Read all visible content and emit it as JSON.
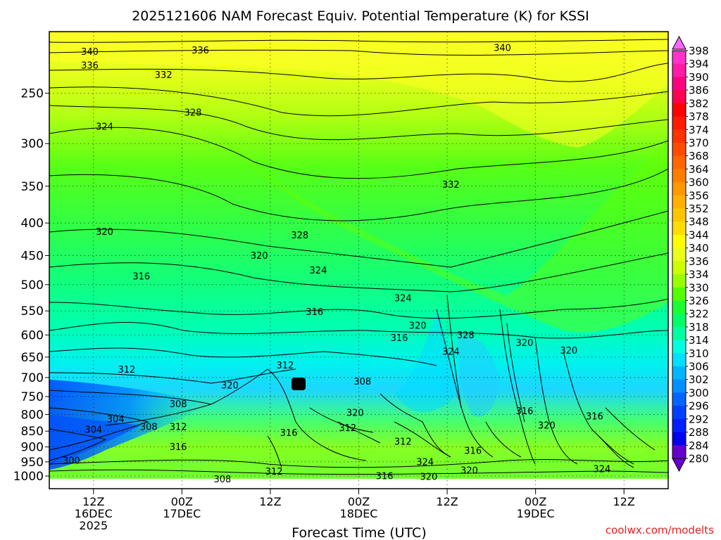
{
  "chart_data": {
    "type": "heatmap",
    "title": "2025121606 NAM Forecast Equiv. Potential Temperature (K) for KSSI",
    "xlabel": "Forecast Time (UTC)",
    "ylabel": "",
    "credit": "coolwx.com/modelts",
    "y_axis": {
      "scale": "log-pressure",
      "range": [
        1000,
        200
      ],
      "ticks": [
        250,
        300,
        350,
        400,
        450,
        500,
        550,
        600,
        650,
        700,
        750,
        800,
        850,
        900,
        950,
        1000
      ]
    },
    "x_axis": {
      "range_hours": [
        0,
        84
      ],
      "ticks": [
        {
          "hour": 6,
          "line1": "12Z",
          "line2": "16DEC",
          "line3": "2025"
        },
        {
          "hour": 18,
          "line1": "00Z",
          "line2": "17DEC",
          "line3": ""
        },
        {
          "hour": 30,
          "line1": "12Z",
          "line2": "",
          "line3": ""
        },
        {
          "hour": 42,
          "line1": "00Z",
          "line2": "18DEC",
          "line3": ""
        },
        {
          "hour": 54,
          "line1": "12Z",
          "line2": "",
          "line3": ""
        },
        {
          "hour": 66,
          "line1": "00Z",
          "line2": "19DEC",
          "line3": ""
        },
        {
          "hour": 78,
          "line1": "12Z",
          "line2": "",
          "line3": ""
        }
      ]
    },
    "colorbar": {
      "levels": [
        {
          "label": "398",
          "color": "#ff66ff"
        },
        {
          "label": "394",
          "color": "#ff33cc"
        },
        {
          "label": "390",
          "color": "#ff1aa8"
        },
        {
          "label": "386",
          "color": "#ff0080"
        },
        {
          "label": "382",
          "color": "#ff0050"
        },
        {
          "label": "378",
          "color": "#ff0000"
        },
        {
          "label": "374",
          "color": "#ff1a00"
        },
        {
          "label": "370",
          "color": "#ff3300"
        },
        {
          "label": "368",
          "color": "#ff4d00"
        },
        {
          "label": "364",
          "color": "#ff6600"
        },
        {
          "label": "360",
          "color": "#ff7f00"
        },
        {
          "label": "356",
          "color": "#ff9900"
        },
        {
          "label": "352",
          "color": "#ffb000"
        },
        {
          "label": "348",
          "color": "#ffc600"
        },
        {
          "label": "344",
          "color": "#ffdd00"
        },
        {
          "label": "340",
          "color": "#ffff00"
        },
        {
          "label": "336",
          "color": "#ecff1a"
        },
        {
          "label": "334",
          "color": "#ccff00"
        },
        {
          "label": "330",
          "color": "#99ff00"
        },
        {
          "label": "326",
          "color": "#55ff00"
        },
        {
          "label": "322",
          "color": "#1aff33"
        },
        {
          "label": "318",
          "color": "#00ff66"
        },
        {
          "label": "314",
          "color": "#00ffa0"
        },
        {
          "label": "310",
          "color": "#00ffe0"
        },
        {
          "label": "306",
          "color": "#00e0ff"
        },
        {
          "label": "302",
          "color": "#00b4ff"
        },
        {
          "label": "300",
          "color": "#0090ff"
        },
        {
          "label": "296",
          "color": "#0066ff"
        },
        {
          "label": "292",
          "color": "#0040ff"
        },
        {
          "label": "288",
          "color": "#0020ff"
        },
        {
          "label": "284",
          "color": "#0000ee"
        },
        {
          "label": "280",
          "color": "#6600cc"
        }
      ]
    },
    "contour_labels": [
      {
        "text": "340",
        "hour": 5.5,
        "p": 215
      },
      {
        "text": "336",
        "hour": 5.5,
        "p": 226
      },
      {
        "text": "336",
        "hour": 20.5,
        "p": 214
      },
      {
        "text": "340",
        "hour": 61.5,
        "p": 212
      },
      {
        "text": "332",
        "hour": 15.5,
        "p": 234
      },
      {
        "text": "328",
        "hour": 19.5,
        "p": 268
      },
      {
        "text": "324",
        "hour": 7.5,
        "p": 282
      },
      {
        "text": "332",
        "hour": 54.5,
        "p": 348
      },
      {
        "text": "320",
        "hour": 7.5,
        "p": 413
      },
      {
        "text": "328",
        "hour": 34,
        "p": 418
      },
      {
        "text": "320",
        "hour": 28.5,
        "p": 450
      },
      {
        "text": "316",
        "hour": 12.5,
        "p": 485
      },
      {
        "text": "324",
        "hour": 36.5,
        "p": 475
      },
      {
        "text": "324",
        "hour": 48,
        "p": 525
      },
      {
        "text": "316",
        "hour": 36,
        "p": 552
      },
      {
        "text": "320",
        "hour": 50,
        "p": 580
      },
      {
        "text": "316",
        "hour": 47.5,
        "p": 606
      },
      {
        "text": "328",
        "hour": 56.5,
        "p": 600
      },
      {
        "text": "320",
        "hour": 64.5,
        "p": 617
      },
      {
        "text": "324",
        "hour": 54.5,
        "p": 637
      },
      {
        "text": "320",
        "hour": 70.5,
        "p": 635
      },
      {
        "text": "312",
        "hour": 10.5,
        "p": 680
      },
      {
        "text": "312",
        "hour": 32,
        "p": 670
      },
      {
        "text": "308",
        "hour": 42.5,
        "p": 710
      },
      {
        "text": "320",
        "hour": 24.5,
        "p": 720
      },
      {
        "text": "308",
        "hour": 17.5,
        "p": 770
      },
      {
        "text": "304",
        "hour": 9,
        "p": 814
      },
      {
        "text": "320",
        "hour": 41.5,
        "p": 795
      },
      {
        "text": "316",
        "hour": 64.5,
        "p": 790
      },
      {
        "text": "316",
        "hour": 74,
        "p": 805
      },
      {
        "text": "304",
        "hour": 6,
        "p": 845
      },
      {
        "text": "308",
        "hour": 13.5,
        "p": 837
      },
      {
        "text": "312",
        "hour": 17.5,
        "p": 837
      },
      {
        "text": "312",
        "hour": 40.5,
        "p": 840
      },
      {
        "text": "316",
        "hour": 32.5,
        "p": 855
      },
      {
        "text": "320",
        "hour": 67.5,
        "p": 833
      },
      {
        "text": "312",
        "hour": 48,
        "p": 883
      },
      {
        "text": "316",
        "hour": 17.5,
        "p": 900
      },
      {
        "text": "316",
        "hour": 57.5,
        "p": 912
      },
      {
        "text": "300",
        "hour": 3,
        "p": 945
      },
      {
        "text": "324",
        "hour": 51,
        "p": 950
      },
      {
        "text": "324",
        "hour": 75,
        "p": 975
      },
      {
        "text": "320",
        "hour": 57,
        "p": 980
      },
      {
        "text": "312",
        "hour": 30.5,
        "p": 983
      },
      {
        "text": "316",
        "hour": 45.5,
        "p": 1000
      },
      {
        "text": "320",
        "hour": 51.5,
        "p": 1003
      },
      {
        "text": "308",
        "hour": 23.5,
        "p": 1012
      }
    ]
  }
}
